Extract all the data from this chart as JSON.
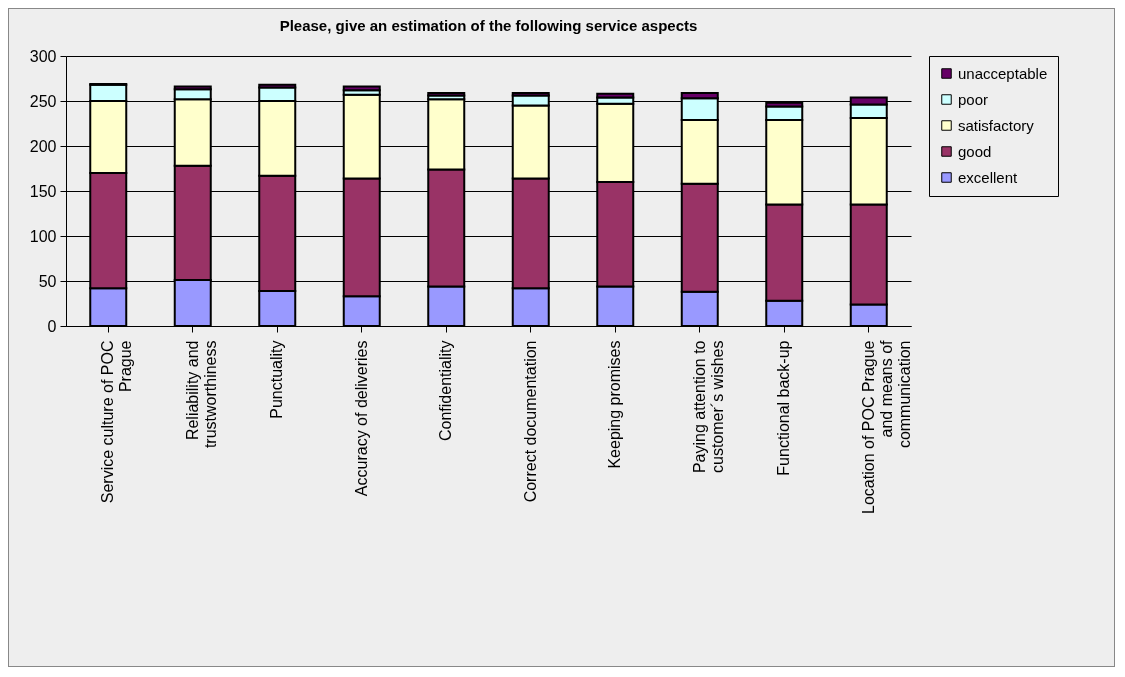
{
  "chart_data": {
    "type": "bar",
    "title": "Please, give an estimation of the following service aspects",
    "stacked": true,
    "categories": [
      "Service culture of POC Prague",
      "Reliability and trustworthiness",
      "Punctuality",
      "Accuracy of deliveries",
      "Confidentiality",
      "Correct documentation",
      "Keeping promises",
      "Paying attention to customer´s wishes",
      "Functional back-up",
      "Location of POC Prague and means of communication"
    ],
    "series": [
      {
        "name": "excellent",
        "color": "#9999ff",
        "values": [
          42,
          51,
          39,
          33,
          44,
          42,
          44,
          38,
          28,
          24
        ]
      },
      {
        "name": "good",
        "color": "#993366",
        "values": [
          128,
          127,
          128,
          131,
          130,
          122,
          116,
          120,
          107,
          111
        ]
      },
      {
        "name": "satisfactory",
        "color": "#ffffcc",
        "values": [
          80,
          74,
          83,
          93,
          78,
          81,
          87,
          71,
          94,
          96
        ]
      },
      {
        "name": "poor",
        "color": "#ccffff",
        "values": [
          18,
          11,
          15,
          5,
          4,
          11,
          7,
          24,
          15,
          15
        ]
      },
      {
        "name": "unacceptable",
        "color": "#660066",
        "values": [
          1,
          3,
          3,
          4,
          3,
          3,
          4,
          6,
          4,
          8
        ]
      }
    ],
    "ylim": [
      0,
      300
    ],
    "yticks": [
      0,
      50,
      100,
      150,
      200,
      250,
      300
    ],
    "grid": "y",
    "legend": "right"
  }
}
